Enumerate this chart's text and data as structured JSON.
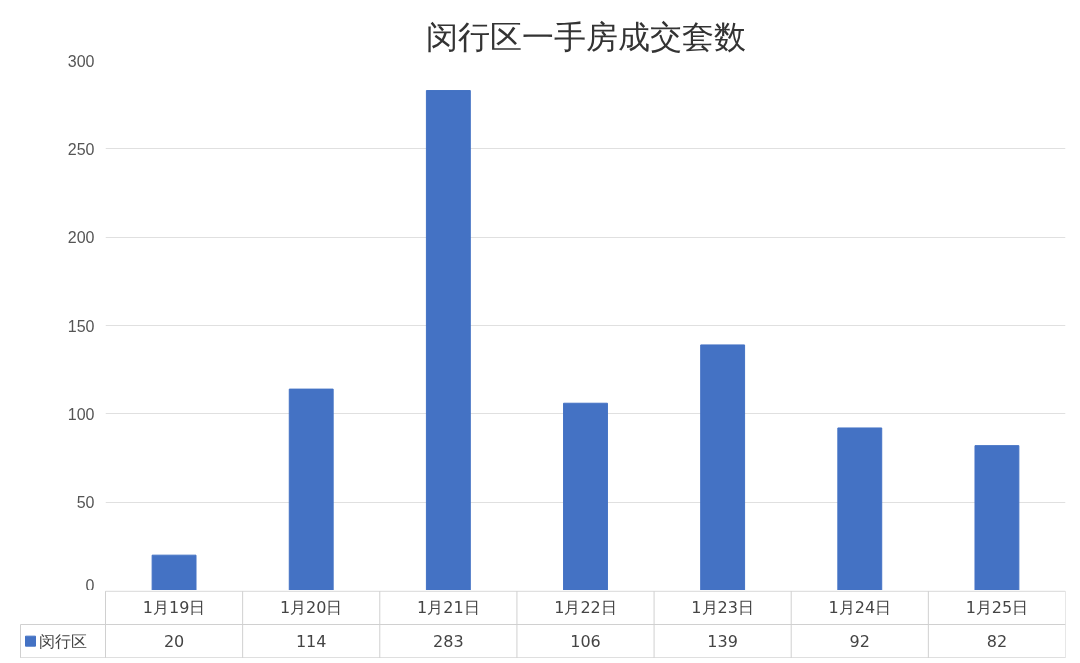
{
  "chart_data": {
    "type": "bar",
    "title": "闵行区一手房成交套数",
    "categories": [
      "1月19日",
      "1月20日",
      "1月21日",
      "1月22日",
      "1月23日",
      "1月24日",
      "1月25日"
    ],
    "series": [
      {
        "name": "闵行区",
        "color": "#4472c4",
        "values": [
          20,
          114,
          283,
          106,
          139,
          92,
          82
        ]
      }
    ],
    "ylim": [
      0,
      300
    ],
    "yticks": [
      0,
      50,
      100,
      150,
      200,
      250,
      300
    ],
    "grid": "y",
    "legend": "bottom",
    "data_labels": true
  }
}
